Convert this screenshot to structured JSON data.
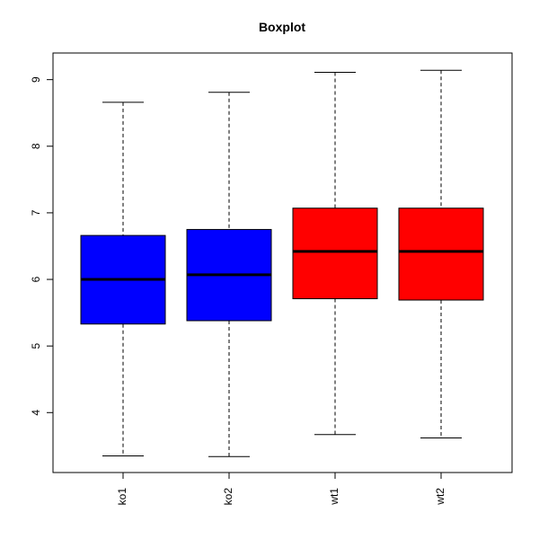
{
  "chart_data": {
    "type": "boxplot",
    "title": "Boxplot",
    "xlabel": "",
    "ylabel": "",
    "ylim": [
      3.1,
      9.4
    ],
    "y_ticks": [
      4,
      5,
      6,
      7,
      8,
      9
    ],
    "grid": false,
    "categories": [
      "ko1",
      "ko2",
      "wt1",
      "wt2"
    ],
    "boxes": [
      {
        "name": "ko1",
        "min": 3.35,
        "q1": 5.33,
        "median": 6.0,
        "q3": 6.66,
        "max": 8.66,
        "color": "#0000ff"
      },
      {
        "name": "ko2",
        "min": 3.34,
        "q1": 5.38,
        "median": 6.07,
        "q3": 6.75,
        "max": 8.81,
        "color": "#0000ff"
      },
      {
        "name": "wt1",
        "min": 3.67,
        "q1": 5.71,
        "median": 6.42,
        "q3": 7.07,
        "max": 9.11,
        "color": "#ff0000"
      },
      {
        "name": "wt2",
        "min": 3.62,
        "q1": 5.69,
        "median": 6.42,
        "q3": 7.07,
        "max": 9.14,
        "color": "#ff0000"
      }
    ]
  }
}
